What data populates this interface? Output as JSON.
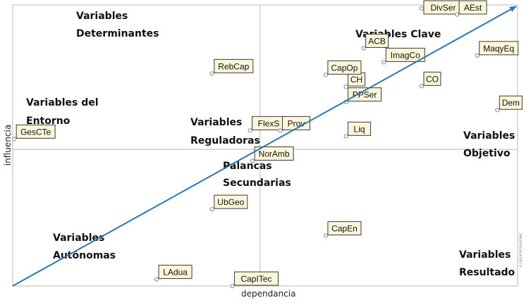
{
  "chart_data": {
    "type": "scatter",
    "title": "",
    "xlabel": "dependancia",
    "ylabel": "influencia",
    "xlim": [
      0,
      100
    ],
    "ylim": [
      0,
      100
    ],
    "grid": false,
    "quadrant_split": {
      "x": 49,
      "y": 48.6
    },
    "points": [
      {
        "label": "DivSer",
        "x": 81,
        "y": 98.8
      },
      {
        "label": "AEst",
        "x": 88,
        "y": 96.6
      },
      {
        "label": "MaqyEq",
        "x": 92,
        "y": 82
      },
      {
        "label": "ImagCo",
        "x": 73.5,
        "y": 79.6
      },
      {
        "label": "ACB",
        "x": 69.5,
        "y": 84.6
      },
      {
        "label": "RebCap",
        "x": 39.5,
        "y": 75.6
      },
      {
        "label": "CH",
        "x": 66,
        "y": 70.9
      },
      {
        "label": "CapOp",
        "x": 62,
        "y": 75.1
      },
      {
        "label": "CO",
        "x": 81,
        "y": 71.1
      },
      {
        "label": "Dem",
        "x": 96,
        "y": 62.6
      },
      {
        "label": "PPSer",
        "x": 66,
        "y": 65.5
      },
      {
        "label": "FlexS",
        "x": 47,
        "y": 55.3
      },
      {
        "label": "Prov",
        "x": 53,
        "y": 55.3
      },
      {
        "label": "Liq",
        "x": 66,
        "y": 53.3
      },
      {
        "label": "GesCTe",
        "x": 0.3,
        "y": 52.3
      },
      {
        "label": "NorAmb",
        "x": 47.5,
        "y": 44.5
      },
      {
        "label": "UbGeo",
        "x": 39.5,
        "y": 27.3
      },
      {
        "label": "CapEn",
        "x": 62,
        "y": 17.9
      },
      {
        "label": "LAdua",
        "x": 28.5,
        "y": 2.4
      },
      {
        "label": "CapITec",
        "x": 43.5,
        "y": 0
      }
    ],
    "zones": [
      {
        "id": "determinantes",
        "lines": [
          "Variables",
          "Determinantes"
        ]
      },
      {
        "id": "clave",
        "lines": [
          "Variables Clave"
        ]
      },
      {
        "id": "entorno",
        "lines": [
          "Variables  del",
          "Entorno"
        ]
      },
      {
        "id": "reguladoras",
        "lines": [
          "Variables",
          "Reguladoras"
        ]
      },
      {
        "id": "objetivo",
        "lines": [
          "Variables",
          "Objetivo"
        ]
      },
      {
        "id": "palancas",
        "lines": [
          "Palancas",
          "Secundarias"
        ]
      },
      {
        "id": "autonomas",
        "lines": [
          "Variables",
          "Autónomas"
        ]
      },
      {
        "id": "resultado",
        "lines": [
          "Variables",
          "Resultado"
        ]
      }
    ],
    "side_note": "© LIPSOR-EPITA-MICMAC",
    "colors": {
      "diagonal": "#2e75b6",
      "label_fill": "#fbf6da",
      "label_border": "#3a3a3a",
      "axis": "#b8b8b8",
      "point": "#888888"
    }
  }
}
